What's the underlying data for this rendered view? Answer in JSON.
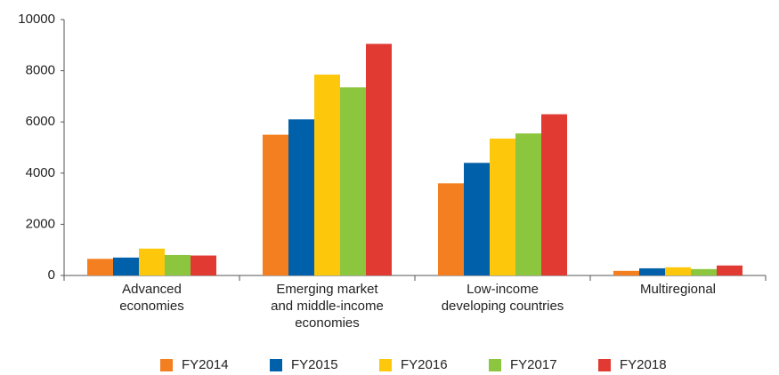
{
  "chart_data": {
    "type": "bar",
    "categories": [
      "Advanced\neconomies",
      "Emerging market\nand middle-income\neconomies",
      "Low-income\ndeveloping countries",
      "Multiregional"
    ],
    "series": [
      {
        "name": "FY2014",
        "color": "#f47f20",
        "values": [
          650,
          5500,
          3600,
          180
        ]
      },
      {
        "name": "FY2015",
        "color": "#0060a9",
        "values": [
          700,
          6100,
          4400,
          280
        ]
      },
      {
        "name": "FY2016",
        "color": "#fdc70c",
        "values": [
          1050,
          7850,
          5350,
          320
        ]
      },
      {
        "name": "FY2017",
        "color": "#8cc63f",
        "values": [
          800,
          7350,
          5550,
          250
        ]
      },
      {
        "name": "FY2018",
        "color": "#e03a32",
        "values": [
          780,
          9050,
          6300,
          390
        ]
      }
    ],
    "ylim": [
      0,
      10000
    ],
    "yticks": [
      0,
      2000,
      4000,
      6000,
      8000,
      10000
    ],
    "grid": false,
    "legend": "bottom"
  }
}
